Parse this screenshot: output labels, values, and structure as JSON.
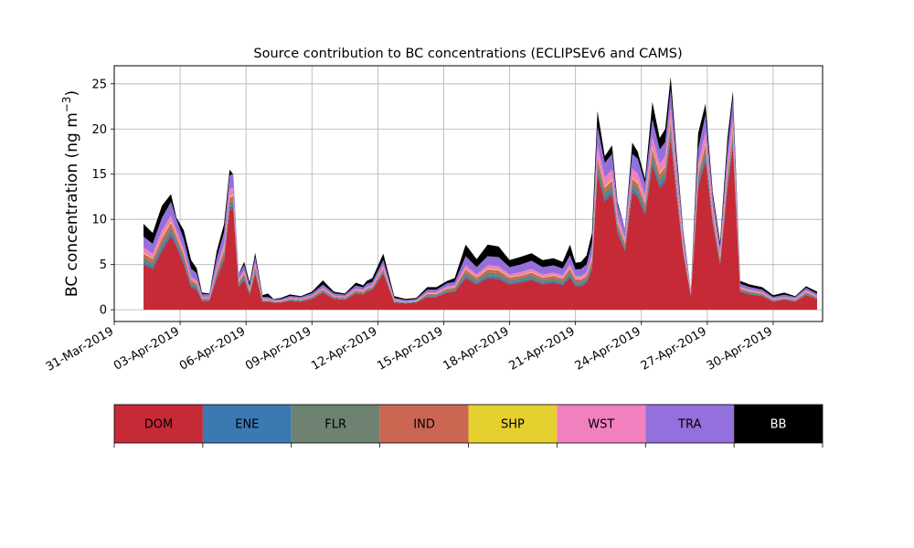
{
  "chart_data": {
    "type": "area",
    "stacked": true,
    "title": "Source contribution to BC concentrations (ECLIPSEv6 and CAMS)",
    "ylabel": "BC concentration (ng m",
    "ylabel_superscript": "−3",
    "ylabel_close": ")",
    "ylim": [
      -1.3,
      27.0
    ],
    "xlim": [
      "2019-03-31",
      "2019-05-02T06:00"
    ],
    "grid": true,
    "y_ticks": [
      0,
      5,
      10,
      15,
      20,
      25
    ],
    "x_ticks": [
      {
        "date": "2019-03-31",
        "label": "31-Mar-2019"
      },
      {
        "date": "2019-04-03",
        "label": "03-Apr-2019"
      },
      {
        "date": "2019-04-06",
        "label": "06-Apr-2019"
      },
      {
        "date": "2019-04-09",
        "label": "09-Apr-2019"
      },
      {
        "date": "2019-04-12",
        "label": "12-Apr-2019"
      },
      {
        "date": "2019-04-15",
        "label": "15-Apr-2019"
      },
      {
        "date": "2019-04-18",
        "label": "18-Apr-2019"
      },
      {
        "date": "2019-04-21",
        "label": "21-Apr-2019"
      },
      {
        "date": "2019-04-24",
        "label": "24-Apr-2019"
      },
      {
        "date": "2019-04-27",
        "label": "27-Apr-2019"
      },
      {
        "date": "2019-04-30",
        "label": "30-Apr-2019"
      }
    ],
    "legend_position": "bottom",
    "legend": [
      {
        "name": "DOM",
        "color": "#c62a36",
        "text_color": "#000000"
      },
      {
        "name": "ENE",
        "color": "#3a79b2",
        "text_color": "#000000"
      },
      {
        "name": "FLR",
        "color": "#6e8271",
        "text_color": "#000000"
      },
      {
        "name": "IND",
        "color": "#cb6653",
        "text_color": "#000000"
      },
      {
        "name": "SHP",
        "color": "#e6d030",
        "text_color": "#000000"
      },
      {
        "name": "WST",
        "color": "#f280bf",
        "text_color": "#000000"
      },
      {
        "name": "TRA",
        "color": "#9370db",
        "text_color": "#000000"
      },
      {
        "name": "BB",
        "color": "#000000",
        "text_color": "#ffffff"
      }
    ],
    "x": [
      "2019-04-01T08:00",
      "2019-04-01T18:00",
      "2019-04-02T04:00",
      "2019-04-02T14:00",
      "2019-04-02T20:00",
      "2019-04-03T04:00",
      "2019-04-03T12:00",
      "2019-04-03T18:00",
      "2019-04-04T00:00",
      "2019-04-04T08:00",
      "2019-04-04T16:00",
      "2019-04-05T00:00",
      "2019-04-05T06:00",
      "2019-04-05T10:00",
      "2019-04-05T16:00",
      "2019-04-05T22:00",
      "2019-04-06T04:00",
      "2019-04-06T10:00",
      "2019-04-06T18:00",
      "2019-04-07T00:00",
      "2019-04-07T06:00",
      "2019-04-07T14:00",
      "2019-04-08T00:00",
      "2019-04-08T12:00",
      "2019-04-09T00:00",
      "2019-04-09T12:00",
      "2019-04-10T00:00",
      "2019-04-10T12:00",
      "2019-04-11T00:00",
      "2019-04-11T08:00",
      "2019-04-11T12:00",
      "2019-04-11T18:00",
      "2019-04-12T06:00",
      "2019-04-12T18:00",
      "2019-04-13T06:00",
      "2019-04-13T18:00",
      "2019-04-14T06:00",
      "2019-04-14T16:00",
      "2019-04-15T04:00",
      "2019-04-15T12:00",
      "2019-04-16T00:00",
      "2019-04-16T12:00",
      "2019-04-17T00:00",
      "2019-04-17T12:00",
      "2019-04-18T00:00",
      "2019-04-18T12:00",
      "2019-04-19T00:00",
      "2019-04-19T12:00",
      "2019-04-20T00:00",
      "2019-04-20T10:00",
      "2019-04-20T18:00",
      "2019-04-21T00:00",
      "2019-04-21T06:00",
      "2019-04-21T12:00",
      "2019-04-21T18:00",
      "2019-04-22T00:00",
      "2019-04-22T08:00",
      "2019-04-22T16:00",
      "2019-04-22T22:00",
      "2019-04-23T06:00",
      "2019-04-23T14:00",
      "2019-04-23T20:00",
      "2019-04-24T04:00",
      "2019-04-24T12:00",
      "2019-04-24T20:00",
      "2019-04-25T02:00",
      "2019-04-25T08:00",
      "2019-04-25T14:00",
      "2019-04-25T22:00",
      "2019-04-26T06:00",
      "2019-04-26T14:00",
      "2019-04-26T22:00",
      "2019-04-27T06:00",
      "2019-04-27T14:00",
      "2019-04-27T22:00",
      "2019-04-28T04:00",
      "2019-04-28T12:00",
      "2019-04-28T22:00",
      "2019-04-29T12:00",
      "2019-04-30T00:00",
      "2019-04-30T12:00",
      "2019-05-01T00:00",
      "2019-05-01T12:00",
      "2019-05-02T00:00"
    ],
    "total": [
      9.5,
      8.5,
      11.5,
      12.8,
      10.2,
      8.8,
      5.5,
      4.6,
      2.0,
      1.8,
      6.5,
      9.5,
      15.5,
      15.0,
      4.0,
      5.5,
      3.0,
      6.3,
      1.6,
      1.8,
      1.2,
      1.3,
      1.7,
      1.5,
      2.0,
      3.2,
      2.0,
      1.8,
      3.0,
      2.7,
      3.2,
      3.5,
      6.2,
      1.5,
      1.2,
      1.3,
      2.5,
      2.5,
      3.2,
      3.5,
      7.2,
      5.6,
      7.2,
      7.0,
      5.5,
      6.0,
      6.3,
      5.5,
      5.7,
      5.3,
      7.2,
      5.2,
      5.3,
      6.0,
      8.5,
      22.0,
      17.0,
      18.2,
      12.0,
      9.0,
      18.5,
      17.5,
      14.5,
      22.5,
      19.0,
      20.0,
      25.8,
      18.0,
      8.5,
      2.2,
      19.5,
      22.8,
      13.0,
      7.5,
      19.0,
      24.2,
      3.2,
      2.8,
      2.5,
      1.6,
      1.9,
      1.5,
      2.6,
      2.0
    ],
    "series": [
      {
        "name": "DOM",
        "values": [
          5.0,
          4.5,
          6.5,
          8.2,
          7.0,
          5.0,
          2.5,
          2.2,
          1.0,
          1.0,
          3.5,
          5.5,
          11.0,
          11.2,
          2.5,
          3.3,
          1.7,
          4.0,
          0.9,
          0.9,
          0.8,
          0.8,
          1.0,
          0.9,
          1.2,
          1.9,
          1.2,
          1.1,
          1.8,
          1.7,
          2.0,
          2.2,
          4.0,
          0.8,
          0.7,
          0.8,
          1.4,
          1.4,
          1.9,
          2.0,
          3.5,
          2.8,
          3.5,
          3.4,
          2.8,
          3.0,
          3.3,
          2.8,
          3.0,
          2.7,
          3.6,
          2.6,
          2.6,
          3.0,
          4.5,
          15.0,
          12.0,
          12.8,
          8.5,
          6.5,
          13.0,
          12.5,
          10.5,
          16.0,
          13.5,
          14.2,
          19.0,
          13.0,
          6.0,
          1.5,
          13.5,
          16.5,
          9.5,
          5.0,
          13.5,
          18.0,
          2.0,
          1.7,
          1.5,
          0.9,
          1.1,
          0.9,
          1.6,
          1.2
        ]
      },
      {
        "name": "ENE",
        "values": [
          0.3,
          0.3,
          0.4,
          0.4,
          0.3,
          0.3,
          0.2,
          0.2,
          0.1,
          0.1,
          0.2,
          0.3,
          0.4,
          0.4,
          0.2,
          0.2,
          0.1,
          0.2,
          0.05,
          0.05,
          0.05,
          0.05,
          0.05,
          0.05,
          0.05,
          0.1,
          0.05,
          0.05,
          0.1,
          0.1,
          0.1,
          0.1,
          0.15,
          0.05,
          0.05,
          0.05,
          0.1,
          0.1,
          0.1,
          0.1,
          0.25,
          0.2,
          0.25,
          0.25,
          0.2,
          0.2,
          0.2,
          0.2,
          0.2,
          0.2,
          0.25,
          0.2,
          0.2,
          0.2,
          0.25,
          0.5,
          0.4,
          0.4,
          0.3,
          0.25,
          0.4,
          0.4,
          0.35,
          0.5,
          0.4,
          0.45,
          0.5,
          0.4,
          0.2,
          0.1,
          0.4,
          0.5,
          0.3,
          0.2,
          0.4,
          0.5,
          0.1,
          0.1,
          0.1,
          0.05,
          0.05,
          0.05,
          0.1,
          0.05
        ]
      },
      {
        "name": "FLR",
        "values": [
          0.5,
          0.4,
          0.5,
          0.5,
          0.4,
          0.4,
          0.3,
          0.3,
          0.1,
          0.1,
          0.3,
          0.4,
          0.5,
          0.5,
          0.2,
          0.3,
          0.2,
          0.3,
          0.1,
          0.1,
          0.05,
          0.05,
          0.1,
          0.1,
          0.1,
          0.15,
          0.1,
          0.1,
          0.15,
          0.1,
          0.15,
          0.15,
          0.2,
          0.1,
          0.05,
          0.05,
          0.15,
          0.15,
          0.2,
          0.2,
          0.4,
          0.3,
          0.4,
          0.4,
          0.3,
          0.3,
          0.35,
          0.3,
          0.3,
          0.3,
          0.4,
          0.3,
          0.3,
          0.3,
          0.45,
          0.7,
          0.6,
          0.6,
          0.45,
          0.35,
          0.6,
          0.55,
          0.5,
          0.7,
          0.6,
          0.6,
          0.75,
          0.6,
          0.3,
          0.1,
          0.6,
          0.7,
          0.4,
          0.3,
          0.6,
          0.7,
          0.15,
          0.15,
          0.1,
          0.1,
          0.1,
          0.1,
          0.15,
          0.1
        ]
      },
      {
        "name": "IND",
        "values": [
          0.4,
          0.4,
          0.5,
          0.5,
          0.4,
          0.4,
          0.3,
          0.2,
          0.1,
          0.1,
          0.3,
          0.4,
          0.5,
          0.5,
          0.2,
          0.2,
          0.1,
          0.3,
          0.05,
          0.05,
          0.05,
          0.05,
          0.05,
          0.05,
          0.1,
          0.1,
          0.1,
          0.1,
          0.1,
          0.1,
          0.1,
          0.1,
          0.2,
          0.05,
          0.05,
          0.05,
          0.1,
          0.1,
          0.15,
          0.15,
          0.3,
          0.25,
          0.3,
          0.3,
          0.25,
          0.25,
          0.25,
          0.25,
          0.25,
          0.25,
          0.3,
          0.25,
          0.25,
          0.25,
          0.35,
          0.6,
          0.5,
          0.5,
          0.35,
          0.3,
          0.5,
          0.5,
          0.4,
          0.6,
          0.5,
          0.55,
          0.65,
          0.5,
          0.25,
          0.1,
          0.5,
          0.6,
          0.35,
          0.25,
          0.5,
          0.6,
          0.1,
          0.1,
          0.1,
          0.05,
          0.05,
          0.05,
          0.1,
          0.05
        ]
      },
      {
        "name": "SHP",
        "values": [
          0.1,
          0.1,
          0.15,
          0.15,
          0.1,
          0.1,
          0.05,
          0.05,
          0.02,
          0.02,
          0.05,
          0.1,
          0.15,
          0.15,
          0.05,
          0.05,
          0.03,
          0.05,
          0.02,
          0.02,
          0.02,
          0.02,
          0.02,
          0.02,
          0.02,
          0.03,
          0.02,
          0.02,
          0.03,
          0.03,
          0.03,
          0.03,
          0.05,
          0.02,
          0.02,
          0.02,
          0.03,
          0.03,
          0.04,
          0.04,
          0.08,
          0.06,
          0.08,
          0.08,
          0.06,
          0.06,
          0.07,
          0.06,
          0.06,
          0.06,
          0.08,
          0.06,
          0.06,
          0.06,
          0.1,
          0.2,
          0.15,
          0.15,
          0.1,
          0.08,
          0.15,
          0.15,
          0.12,
          0.2,
          0.15,
          0.15,
          0.2,
          0.15,
          0.08,
          0.03,
          0.15,
          0.2,
          0.1,
          0.07,
          0.15,
          0.2,
          0.03,
          0.03,
          0.03,
          0.02,
          0.02,
          0.02,
          0.03,
          0.02
        ]
      },
      {
        "name": "WST",
        "values": [
          0.6,
          0.5,
          0.7,
          0.7,
          0.6,
          0.5,
          0.3,
          0.3,
          0.1,
          0.1,
          0.4,
          0.6,
          0.8,
          0.8,
          0.3,
          0.3,
          0.2,
          0.4,
          0.1,
          0.1,
          0.05,
          0.05,
          0.1,
          0.1,
          0.1,
          0.15,
          0.1,
          0.1,
          0.15,
          0.15,
          0.15,
          0.15,
          0.3,
          0.1,
          0.05,
          0.05,
          0.15,
          0.15,
          0.2,
          0.2,
          0.4,
          0.3,
          0.4,
          0.4,
          0.3,
          0.35,
          0.35,
          0.3,
          0.3,
          0.3,
          0.4,
          0.3,
          0.3,
          0.35,
          0.5,
          1.3,
          1.0,
          1.1,
          0.7,
          0.5,
          1.0,
          1.0,
          0.8,
          1.2,
          1.0,
          1.0,
          1.3,
          1.0,
          0.5,
          0.1,
          1.0,
          1.2,
          0.7,
          0.4,
          1.0,
          1.3,
          0.15,
          0.15,
          0.1,
          0.1,
          0.1,
          0.1,
          0.15,
          0.1
        ]
      },
      {
        "name": "TRA",
        "values": [
          1.2,
          1.1,
          1.4,
          1.5,
          1.2,
          1.1,
          0.9,
          0.8,
          0.3,
          0.3,
          1.0,
          1.3,
          1.5,
          1.5,
          0.5,
          0.6,
          0.3,
          0.6,
          0.2,
          0.2,
          0.15,
          0.15,
          0.2,
          0.2,
          0.25,
          0.35,
          0.25,
          0.2,
          0.35,
          0.3,
          0.35,
          0.35,
          0.6,
          0.2,
          0.15,
          0.15,
          0.3,
          0.3,
          0.35,
          0.4,
          1.0,
          0.8,
          1.0,
          1.0,
          0.8,
          0.85,
          0.9,
          0.8,
          0.8,
          0.75,
          1.0,
          0.75,
          0.8,
          0.85,
          1.2,
          2.0,
          1.6,
          1.7,
          1.2,
          1.0,
          1.6,
          1.6,
          1.3,
          1.9,
          1.6,
          1.6,
          2.0,
          1.6,
          0.9,
          0.15,
          1.6,
          1.9,
          1.2,
          0.8,
          1.6,
          2.0,
          0.35,
          0.3,
          0.3,
          0.2,
          0.25,
          0.2,
          0.3,
          0.25
        ]
      },
      {
        "name": "BB",
        "values": [
          1.4,
          1.2,
          1.35,
          0.85,
          0.2,
          1.0,
          0.95,
          0.55,
          0.18,
          0.08,
          0.75,
          0.9,
          0.65,
          -0.05,
          0.05,
          0.35,
          0.37,
          0.45,
          0.18,
          0.38,
          0.03,
          0.13,
          0.18,
          0.08,
          0.18,
          0.47,
          0.18,
          0.13,
          0.32,
          0.22,
          0.32,
          0.42,
          0.7,
          0.18,
          0.13,
          0.13,
          0.27,
          0.27,
          0.26,
          0.41,
          1.27,
          0.89,
          1.27,
          1.17,
          0.79,
          0.84,
          0.83,
          0.79,
          0.79,
          0.74,
          1.17,
          0.74,
          0.79,
          0.99,
          1.15,
          1.7,
          0.75,
          0.95,
          0.3,
          0.02,
          1.25,
          0.8,
          0.53,
          1.9,
          1.25,
          1.45,
          1.4,
          0.75,
          0.27,
          0.11,
          1.75,
          1.2,
          0.45,
          0.48,
          1.25,
          0.9,
          0.32,
          0.27,
          0.27,
          0.18,
          0.23,
          0.08,
          0.17,
          0.23
        ]
      }
    ]
  }
}
